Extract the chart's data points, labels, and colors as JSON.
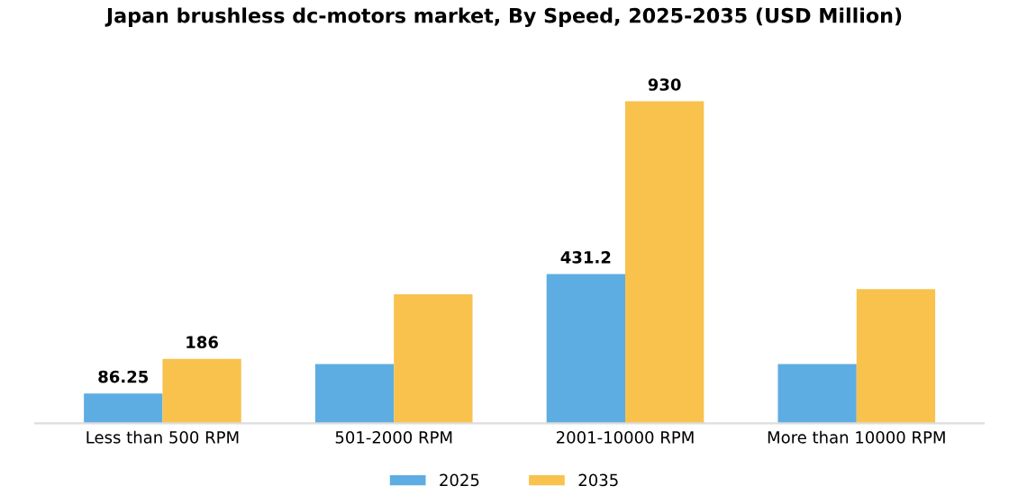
{
  "chart_data": {
    "type": "bar",
    "title": "Japan brushless dc-motors market, By Speed, 2025-2035 (USD Million)",
    "categories": [
      "Less than 500 RPM",
      "501-2000 RPM",
      "2001-10000 RPM",
      "More than 10000 RPM"
    ],
    "series": [
      {
        "name": "2025",
        "color": "#5dade2",
        "values": [
          86.25,
          171,
          431.2,
          171
        ],
        "value_labels": [
          "86.25",
          null,
          "431.2",
          null
        ]
      },
      {
        "name": "2035",
        "color": "#f8c24d",
        "values": [
          186,
          373,
          930,
          388
        ],
        "value_labels": [
          "186",
          null,
          "930",
          null
        ]
      }
    ],
    "legend": "bottom",
    "tick_labels": "x"
  }
}
